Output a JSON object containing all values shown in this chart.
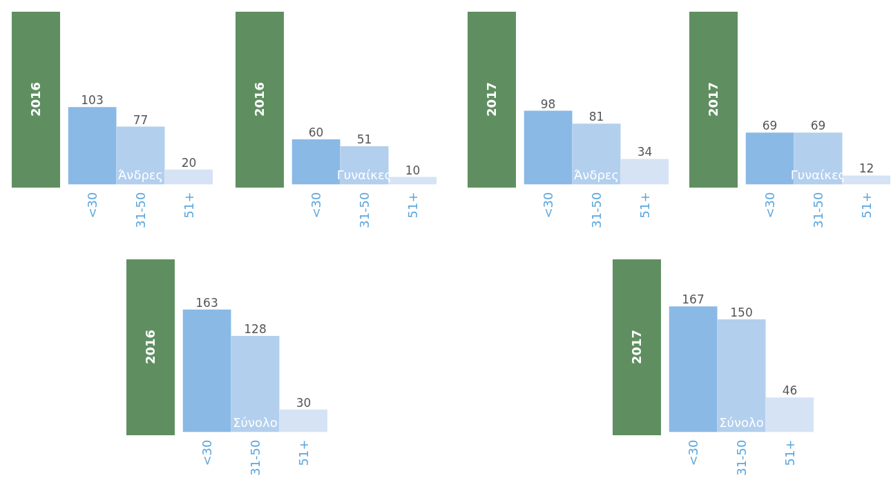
{
  "chart_data": [
    {
      "type": "bar",
      "title": "2016",
      "categories": [
        "<30",
        "31-50",
        "51+"
      ],
      "values": [
        103,
        77,
        20
      ],
      "colors": [
        "#8ab9e5",
        "#b2cfee",
        "#d6e3f5"
      ],
      "data_labels": true,
      "annotations": [
        "Άνδρες"
      ]
    },
    {
      "type": "bar",
      "title": "2016",
      "categories": [
        "<30",
        "31-50",
        "51+"
      ],
      "values": [
        60,
        51,
        10
      ],
      "colors": [
        "#8ab9e5",
        "#b2cfee",
        "#d6e3f5"
      ],
      "data_labels": true,
      "annotations": [
        "Γυναίκες"
      ]
    },
    {
      "type": "bar",
      "title": "2017",
      "categories": [
        "<30",
        "31-50",
        "51+"
      ],
      "values": [
        98,
        81,
        34
      ],
      "colors": [
        "#8ab9e5",
        "#b2cfee",
        "#d6e3f5"
      ],
      "data_labels": true,
      "annotations": [
        "Άνδρες"
      ]
    },
    {
      "type": "bar",
      "title": "2017",
      "categories": [
        "<30",
        "31-50",
        "51+"
      ],
      "values": [
        69,
        69,
        12
      ],
      "colors": [
        "#8ab9e5",
        "#b2cfee",
        "#d6e3f5"
      ],
      "data_labels": true,
      "annotations": [
        "Γυναίκες"
      ]
    },
    {
      "type": "bar",
      "title": "2016",
      "categories": [
        "<30",
        "31-50",
        "51+"
      ],
      "values": [
        163,
        128,
        30
      ],
      "colors": [
        "#8ab9e5",
        "#b2cfee",
        "#d6e3f5"
      ],
      "data_labels": true,
      "annotations": [
        "Σύνολο"
      ]
    },
    {
      "type": "bar",
      "title": "2017",
      "categories": [
        "<30",
        "31-50",
        "51+"
      ],
      "values": [
        167,
        150,
        46
      ],
      "colors": [
        "#8ab9e5",
        "#b2cfee",
        "#d6e3f5"
      ],
      "data_labels": true,
      "annotations": [
        "Σύνολο"
      ]
    }
  ]
}
